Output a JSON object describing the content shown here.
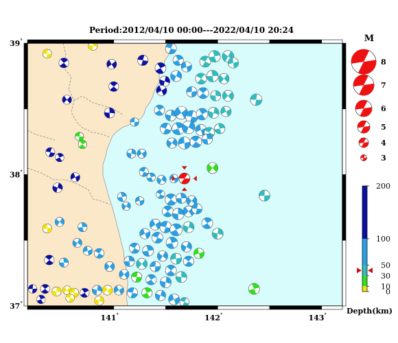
{
  "title": "Period:2012/04/10 00:00---2022/04/10 20:24",
  "axes": {
    "lat_labels": [
      {
        "text": "39",
        "value": 39
      },
      {
        "text": "38",
        "value": 38
      },
      {
        "text": "37",
        "value": 37
      }
    ],
    "lon_labels": [
      {
        "text": "141",
        "value": 141
      },
      {
        "text": "142",
        "value": 142
      },
      {
        "text": "143",
        "value": 143
      }
    ],
    "degree_symbol": "°",
    "lon_range": [
      140.17,
      143.2
    ],
    "lat_range": [
      37.0,
      39.0
    ]
  },
  "colors": {
    "land": "#fbe8c8",
    "sea": "#d8fbfc",
    "sea_edge": "#c8f3f7",
    "depth_0_10": "#f1e30e",
    "depth_10_30": "#33dd22",
    "depth_30_50": "#33bbbb",
    "depth_50_100": "#2c9fe0",
    "depth_100_200": "#0d10a0",
    "scale_ball": "#ee1111",
    "marker": "#cc1111"
  },
  "magnitude_legend": {
    "title": "M",
    "entries": [
      "8",
      "7",
      "6",
      "5",
      "4",
      "3"
    ]
  },
  "depth_colorbar": {
    "ticks": [
      "200",
      "100",
      "50",
      "30",
      "10",
      "0"
    ],
    "tick_values": [
      200,
      100,
      50,
      30,
      10,
      0
    ],
    "title": "Depth(km)",
    "marker_depth": 40
  },
  "highlight_event": {
    "lon": 141.68,
    "lat": 37.97,
    "magnitude": 5,
    "color": "#ee1111"
  },
  "events": [
    {
      "lon": 140.36,
      "lat": 38.92,
      "m": 3.5,
      "c": "y"
    },
    {
      "lon": 140.52,
      "lat": 38.85,
      "m": 3.8,
      "c": "n"
    },
    {
      "lon": 140.8,
      "lat": 38.98,
      "m": 3.6,
      "c": "y"
    },
    {
      "lon": 140.98,
      "lat": 38.84,
      "m": 3.8,
      "c": "n"
    },
    {
      "lon": 141.28,
      "lat": 38.87,
      "m": 4.0,
      "c": "n"
    },
    {
      "lon": 141.45,
      "lat": 38.81,
      "m": 4.2,
      "c": "n"
    },
    {
      "lon": 141.49,
      "lat": 38.71,
      "m": 4.0,
      "c": "n"
    },
    {
      "lon": 141.46,
      "lat": 38.64,
      "m": 4.0,
      "c": "n"
    },
    {
      "lon": 141.55,
      "lat": 38.96,
      "m": 4.2,
      "c": "b"
    },
    {
      "lon": 141.62,
      "lat": 38.87,
      "m": 4.0,
      "c": "b"
    },
    {
      "lon": 141.6,
      "lat": 38.75,
      "m": 4.2,
      "c": "b"
    },
    {
      "lon": 141.7,
      "lat": 38.82,
      "m": 4.0,
      "c": "b"
    },
    {
      "lon": 141.88,
      "lat": 38.86,
      "m": 4.2,
      "c": "t"
    },
    {
      "lon": 141.97,
      "lat": 38.9,
      "m": 4.4,
      "c": "t"
    },
    {
      "lon": 142.1,
      "lat": 38.9,
      "m": 4.4,
      "c": "t"
    },
    {
      "lon": 142.15,
      "lat": 38.85,
      "m": 4.0,
      "c": "t"
    },
    {
      "lon": 141.84,
      "lat": 38.73,
      "m": 4.2,
      "c": "t"
    },
    {
      "lon": 141.95,
      "lat": 38.75,
      "m": 4.4,
      "c": "t"
    },
    {
      "lon": 142.06,
      "lat": 38.73,
      "m": 4.0,
      "c": "t"
    },
    {
      "lon": 141.75,
      "lat": 38.63,
      "m": 4.0,
      "c": "b"
    },
    {
      "lon": 141.86,
      "lat": 38.62,
      "m": 4.2,
      "c": "b"
    },
    {
      "lon": 141.98,
      "lat": 38.6,
      "m": 4.0,
      "c": "t"
    },
    {
      "lon": 142.1,
      "lat": 38.6,
      "m": 4.2,
      "c": "t"
    },
    {
      "lon": 142.37,
      "lat": 38.57,
      "m": 4.4,
      "c": "t"
    },
    {
      "lon": 141.44,
      "lat": 38.49,
      "m": 4.0,
      "c": "b"
    },
    {
      "lon": 141.55,
      "lat": 38.45,
      "m": 4.2,
      "c": "b"
    },
    {
      "lon": 141.65,
      "lat": 38.47,
      "m": 4.8,
      "c": "b"
    },
    {
      "lon": 141.75,
      "lat": 38.44,
      "m": 4.6,
      "c": "b"
    },
    {
      "lon": 141.85,
      "lat": 38.46,
      "m": 4.4,
      "c": "b"
    },
    {
      "lon": 141.96,
      "lat": 38.47,
      "m": 4.2,
      "c": "t"
    },
    {
      "lon": 142.08,
      "lat": 38.48,
      "m": 4.0,
      "c": "t"
    },
    {
      "lon": 141.5,
      "lat": 38.35,
      "m": 4.2,
      "c": "b"
    },
    {
      "lon": 141.62,
      "lat": 38.35,
      "m": 4.6,
      "c": "b"
    },
    {
      "lon": 141.72,
      "lat": 38.36,
      "m": 4.8,
      "c": "b"
    },
    {
      "lon": 141.84,
      "lat": 38.34,
      "m": 4.2,
      "c": "b"
    },
    {
      "lon": 141.92,
      "lat": 38.32,
      "m": 4.0,
      "c": "t"
    },
    {
      "lon": 142.02,
      "lat": 38.35,
      "m": 4.0,
      "c": "t"
    },
    {
      "lon": 141.56,
      "lat": 38.24,
      "m": 4.0,
      "c": "b"
    },
    {
      "lon": 141.68,
      "lat": 38.24,
      "m": 4.6,
      "c": "b"
    },
    {
      "lon": 141.79,
      "lat": 38.25,
      "m": 4.4,
      "c": "b"
    },
    {
      "lon": 141.9,
      "lat": 38.27,
      "m": 4.0,
      "c": "b"
    },
    {
      "lon": 141.95,
      "lat": 38.05,
      "m": 4.2,
      "c": "g"
    },
    {
      "lon": 141.2,
      "lat": 38.4,
      "m": 3.4,
      "c": "b"
    },
    {
      "lon": 141.0,
      "lat": 38.67,
      "m": 3.8,
      "c": "n"
    },
    {
      "lon": 140.96,
      "lat": 38.47,
      "m": 4.0,
      "c": "n"
    },
    {
      "lon": 140.55,
      "lat": 38.57,
      "m": 3.6,
      "c": "n"
    },
    {
      "lon": 140.67,
      "lat": 38.29,
      "m": 3.4,
      "c": "g"
    },
    {
      "lon": 140.7,
      "lat": 38.23,
      "m": 3.4,
      "c": "g"
    },
    {
      "lon": 141.17,
      "lat": 38.16,
      "m": 3.6,
      "c": "b"
    },
    {
      "lon": 141.27,
      "lat": 38.16,
      "m": 3.6,
      "c": "b"
    },
    {
      "lon": 140.39,
      "lat": 38.17,
      "m": 3.6,
      "c": "n"
    },
    {
      "lon": 140.48,
      "lat": 38.13,
      "m": 3.4,
      "c": "n"
    },
    {
      "lon": 140.46,
      "lat": 37.9,
      "m": 3.8,
      "c": "n"
    },
    {
      "lon": 140.63,
      "lat": 37.98,
      "m": 3.6,
      "c": "n"
    },
    {
      "lon": 141.29,
      "lat": 38.02,
      "m": 3.6,
      "c": "b"
    },
    {
      "lon": 141.36,
      "lat": 37.98,
      "m": 3.4,
      "c": "b"
    },
    {
      "lon": 141.46,
      "lat": 37.96,
      "m": 3.6,
      "c": "b"
    },
    {
      "lon": 141.58,
      "lat": 37.97,
      "m": 3.4,
      "c": "b"
    },
    {
      "lon": 141.45,
      "lat": 37.85,
      "m": 3.4,
      "c": "b"
    },
    {
      "lon": 141.08,
      "lat": 37.83,
      "m": 3.6,
      "c": "b"
    },
    {
      "lon": 141.12,
      "lat": 37.76,
      "m": 3.4,
      "c": "b"
    },
    {
      "lon": 141.25,
      "lat": 37.8,
      "m": 3.4,
      "c": "b"
    },
    {
      "lon": 141.55,
      "lat": 37.81,
      "m": 4.4,
      "c": "b"
    },
    {
      "lon": 141.65,
      "lat": 37.82,
      "m": 4.0,
      "c": "b"
    },
    {
      "lon": 141.75,
      "lat": 37.8,
      "m": 4.0,
      "c": "b"
    },
    {
      "lon": 142.45,
      "lat": 37.84,
      "m": 4.2,
      "c": "t"
    },
    {
      "lon": 141.52,
      "lat": 37.72,
      "m": 4.2,
      "c": "b"
    },
    {
      "lon": 141.62,
      "lat": 37.7,
      "m": 4.4,
      "c": "b"
    },
    {
      "lon": 141.72,
      "lat": 37.72,
      "m": 4.2,
      "c": "b"
    },
    {
      "lon": 141.8,
      "lat": 37.74,
      "m": 4.0,
      "c": "b"
    },
    {
      "lon": 141.9,
      "lat": 37.63,
      "m": 4.2,
      "c": "b"
    },
    {
      "lon": 142.0,
      "lat": 37.55,
      "m": 4.2,
      "c": "t"
    },
    {
      "lon": 141.4,
      "lat": 37.62,
      "m": 4.2,
      "c": "b"
    },
    {
      "lon": 141.5,
      "lat": 37.6,
      "m": 4.4,
      "c": "b"
    },
    {
      "lon": 141.6,
      "lat": 37.58,
      "m": 4.6,
      "c": "b"
    },
    {
      "lon": 141.72,
      "lat": 37.6,
      "m": 4.2,
      "c": "t"
    },
    {
      "lon": 141.3,
      "lat": 37.55,
      "m": 4.0,
      "c": "b"
    },
    {
      "lon": 141.42,
      "lat": 37.52,
      "m": 4.2,
      "c": "b"
    },
    {
      "lon": 141.56,
      "lat": 37.48,
      "m": 4.4,
      "c": "b"
    },
    {
      "lon": 141.7,
      "lat": 37.45,
      "m": 4.0,
      "c": "b"
    },
    {
      "lon": 141.82,
      "lat": 37.4,
      "m": 4.0,
      "c": "g"
    },
    {
      "lon": 141.2,
      "lat": 37.44,
      "m": 4.0,
      "c": "b"
    },
    {
      "lon": 141.33,
      "lat": 37.42,
      "m": 4.2,
      "c": "b"
    },
    {
      "lon": 141.47,
      "lat": 37.38,
      "m": 4.0,
      "c": "b"
    },
    {
      "lon": 141.6,
      "lat": 37.36,
      "m": 4.2,
      "c": "t"
    },
    {
      "lon": 141.72,
      "lat": 37.34,
      "m": 4.0,
      "c": "b"
    },
    {
      "lon": 141.15,
      "lat": 37.34,
      "m": 4.0,
      "c": "b"
    },
    {
      "lon": 141.27,
      "lat": 37.32,
      "m": 4.2,
      "c": "t"
    },
    {
      "lon": 141.4,
      "lat": 37.3,
      "m": 4.0,
      "c": "b"
    },
    {
      "lon": 141.55,
      "lat": 37.27,
      "m": 4.2,
      "c": "b"
    },
    {
      "lon": 141.65,
      "lat": 37.22,
      "m": 4.2,
      "c": "t"
    },
    {
      "lon": 141.1,
      "lat": 37.24,
      "m": 3.8,
      "c": "b"
    },
    {
      "lon": 141.22,
      "lat": 37.22,
      "m": 4.0,
      "c": "g"
    },
    {
      "lon": 141.36,
      "lat": 37.2,
      "m": 4.0,
      "c": "b"
    },
    {
      "lon": 141.5,
      "lat": 37.18,
      "m": 4.2,
      "c": "b"
    },
    {
      "lon": 141.05,
      "lat": 37.12,
      "m": 3.8,
      "c": "b"
    },
    {
      "lon": 141.18,
      "lat": 37.1,
      "m": 4.0,
      "c": "b"
    },
    {
      "lon": 141.32,
      "lat": 37.1,
      "m": 4.0,
      "c": "g"
    },
    {
      "lon": 141.45,
      "lat": 37.08,
      "m": 4.0,
      "c": "b"
    },
    {
      "lon": 141.58,
      "lat": 37.05,
      "m": 4.2,
      "c": "b"
    },
    {
      "lon": 141.68,
      "lat": 37.03,
      "m": 3.6,
      "c": "t"
    },
    {
      "lon": 142.35,
      "lat": 37.13,
      "m": 4.2,
      "c": "g"
    },
    {
      "lon": 140.65,
      "lat": 37.48,
      "m": 3.6,
      "c": "b"
    },
    {
      "lon": 140.75,
      "lat": 37.42,
      "m": 3.6,
      "c": "b"
    },
    {
      "lon": 140.86,
      "lat": 37.4,
      "m": 3.8,
      "c": "b"
    },
    {
      "lon": 140.7,
      "lat": 37.6,
      "m": 3.6,
      "c": "b"
    },
    {
      "lon": 140.48,
      "lat": 37.64,
      "m": 3.6,
      "c": "b"
    },
    {
      "lon": 140.36,
      "lat": 37.59,
      "m": 3.6,
      "c": "y"
    },
    {
      "lon": 140.38,
      "lat": 37.35,
      "m": 3.8,
      "c": "n"
    },
    {
      "lon": 140.52,
      "lat": 37.33,
      "m": 3.6,
      "c": "b"
    },
    {
      "lon": 140.96,
      "lat": 37.3,
      "m": 3.8,
      "c": "b"
    },
    {
      "lon": 140.22,
      "lat": 37.13,
      "m": 3.4,
      "c": "n"
    },
    {
      "lon": 140.34,
      "lat": 37.13,
      "m": 3.6,
      "c": "n"
    },
    {
      "lon": 140.45,
      "lat": 37.11,
      "m": 3.6,
      "c": "y"
    },
    {
      "lon": 140.55,
      "lat": 37.12,
      "m": 3.4,
      "c": "y"
    },
    {
      "lon": 140.62,
      "lat": 37.1,
      "m": 3.6,
      "c": "y"
    },
    {
      "lon": 140.72,
      "lat": 37.1,
      "m": 3.6,
      "c": "n"
    },
    {
      "lon": 140.84,
      "lat": 37.12,
      "m": 3.8,
      "c": "b"
    },
    {
      "lon": 140.94,
      "lat": 37.12,
      "m": 3.8,
      "c": "y"
    },
    {
      "lon": 140.58,
      "lat": 37.06,
      "m": 3.4,
      "c": "y"
    },
    {
      "lon": 140.3,
      "lat": 37.05,
      "m": 3.4,
      "c": "n"
    },
    {
      "lon": 140.86,
      "lat": 37.04,
      "m": 3.6,
      "c": "y"
    }
  ]
}
